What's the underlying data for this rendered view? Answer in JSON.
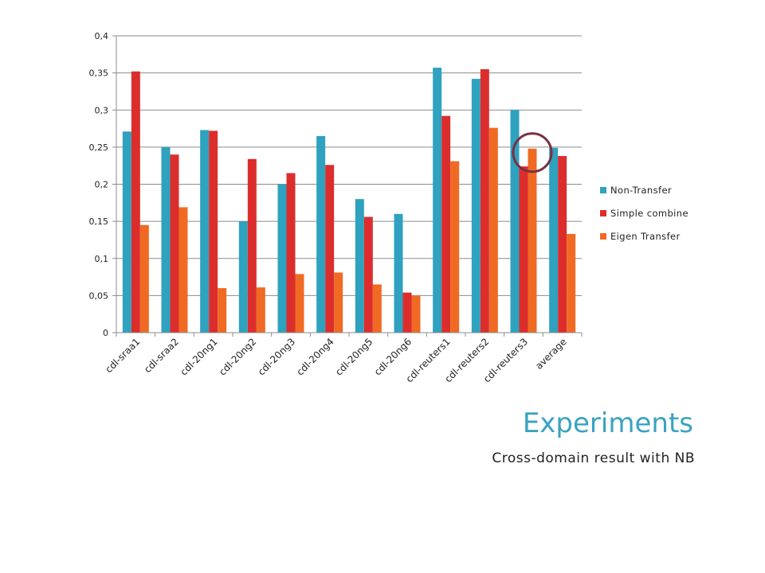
{
  "slide": {
    "title": "Experiments",
    "subtitle": "Cross-domain result with NB"
  },
  "colors": {
    "non_transfer": "#2ea2bf",
    "simple_combine": "#dc2d2d",
    "eigen_transfer": "#f06a24",
    "highlight_circle": "#7a3040"
  },
  "chart_data": {
    "type": "bar",
    "categories": [
      "cdl-sraa1",
      "cdl-sraa2",
      "cdl-20ng1",
      "cdl-20ng2",
      "cdl-20ng3",
      "cdl-20ng4",
      "cdl-20ng5",
      "cdl-20ng6",
      "cdl-reuters1",
      "cdl-reuters2",
      "cdl-reuters3",
      "average"
    ],
    "series": [
      {
        "name": "Non-Transfer",
        "values": [
          0.271,
          0.25,
          0.273,
          0.15,
          0.2,
          0.265,
          0.18,
          0.16,
          0.357,
          0.342,
          0.3,
          0.249
        ]
      },
      {
        "name": "Simple combine",
        "values": [
          0.352,
          0.24,
          0.272,
          0.234,
          0.215,
          0.226,
          0.156,
          0.054,
          0.292,
          0.355,
          0.224,
          0.238
        ]
      },
      {
        "name": "Eigen Transfer",
        "values": [
          0.145,
          0.169,
          0.06,
          0.061,
          0.079,
          0.081,
          0.065,
          0.05,
          0.231,
          0.276,
          0.248,
          0.133
        ]
      }
    ],
    "ylim": [
      0,
      0.4
    ],
    "yticks": [
      0,
      0.05,
      0.1,
      0.15,
      0.2,
      0.25,
      0.3,
      0.35,
      0.4
    ],
    "ytick_labels": [
      "0",
      "0,05",
      "0,1",
      "0,15",
      "0,2",
      "0,25",
      "0,3",
      "0,35",
      "0,4"
    ],
    "grid": true,
    "legend": "right",
    "annotation": {
      "type": "circle",
      "category": "cdl-reuters3",
      "series": "Eigen Transfer"
    }
  }
}
